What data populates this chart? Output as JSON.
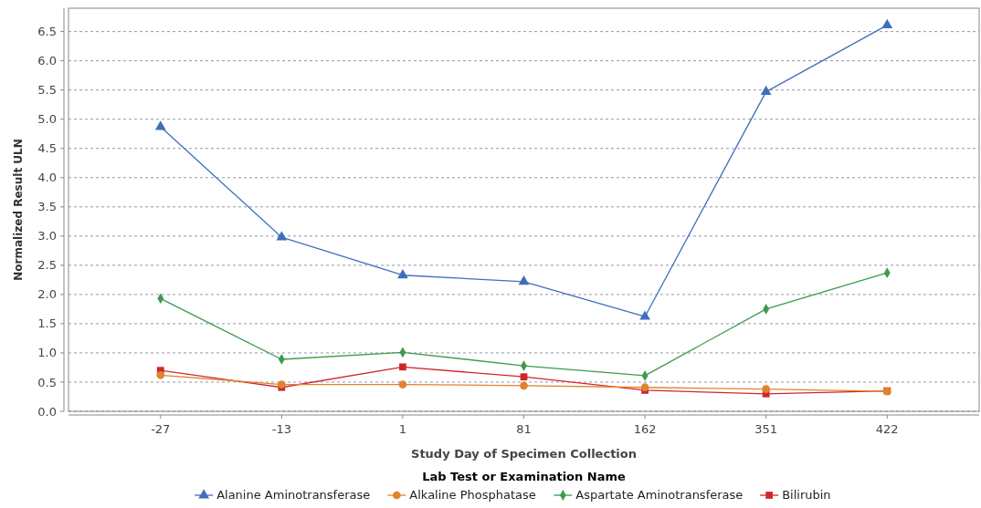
{
  "chart_data": {
    "type": "line",
    "xlabel": "Study Day of Specimen Collection",
    "ylabel": "Normalized Result ULN",
    "legend_title": "Lab Test or Examination Name",
    "legend": "bottom",
    "grid": "y",
    "line_style": "solid",
    "categories": [
      "-27",
      "-13",
      "1",
      "81",
      "162",
      "351",
      "422"
    ],
    "ylim": [
      0,
      6.9
    ],
    "yticks": [
      {
        "value": 0,
        "label": "0.0"
      },
      0.5,
      {
        "value": 1,
        "label": "1.0"
      },
      1.5,
      {
        "value": 2,
        "label": "2.0"
      },
      2.5,
      {
        "value": 3,
        "label": "3.0"
      },
      3.5,
      {
        "value": 4,
        "label": "4.0"
      },
      4.5,
      {
        "value": 5,
        "label": "5.0"
      },
      5.5,
      {
        "value": 6,
        "label": "6.0"
      },
      6.5
    ],
    "series": [
      {
        "name": "Alanine Aminotransferase",
        "color": "#3f6fba",
        "marker": "triangle",
        "values": [
          4.87,
          2.98,
          2.33,
          2.22,
          1.62,
          5.47,
          6.61
        ]
      },
      {
        "name": "Alkaline Phosphatase",
        "color": "#e0832e",
        "marker": "circle",
        "values": [
          0.62,
          0.46,
          0.46,
          0.44,
          0.41,
          0.38,
          0.34
        ]
      },
      {
        "name": "Aspartate Aminotransferase",
        "color": "#3e9a4c",
        "marker": "diamond",
        "values": [
          1.93,
          0.89,
          1.01,
          0.78,
          0.61,
          1.75,
          2.37
        ]
      },
      {
        "name": "Bilirubin",
        "color": "#d0262a",
        "marker": "square",
        "values": [
          0.7,
          0.41,
          0.76,
          0.59,
          0.36,
          0.3,
          0.35
        ]
      }
    ]
  }
}
